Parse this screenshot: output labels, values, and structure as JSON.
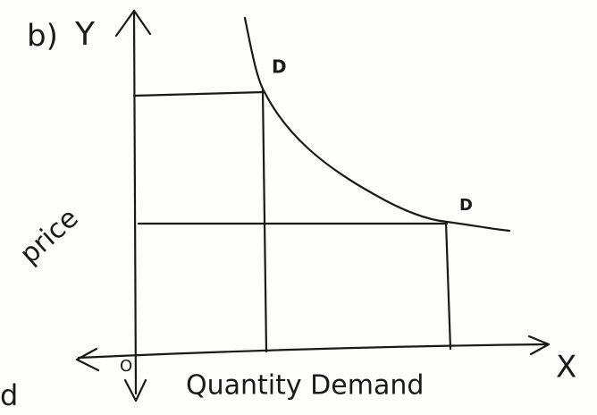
{
  "diagram": {
    "part_label": "b)",
    "y_axis_letter": "Y",
    "x_axis_letter": "X",
    "origin_label": "O",
    "y_axis_title": "price",
    "x_axis_title": "Quantity Demand",
    "curve_labels": [
      "D",
      "D"
    ],
    "margin_fragment": "d"
  }
}
